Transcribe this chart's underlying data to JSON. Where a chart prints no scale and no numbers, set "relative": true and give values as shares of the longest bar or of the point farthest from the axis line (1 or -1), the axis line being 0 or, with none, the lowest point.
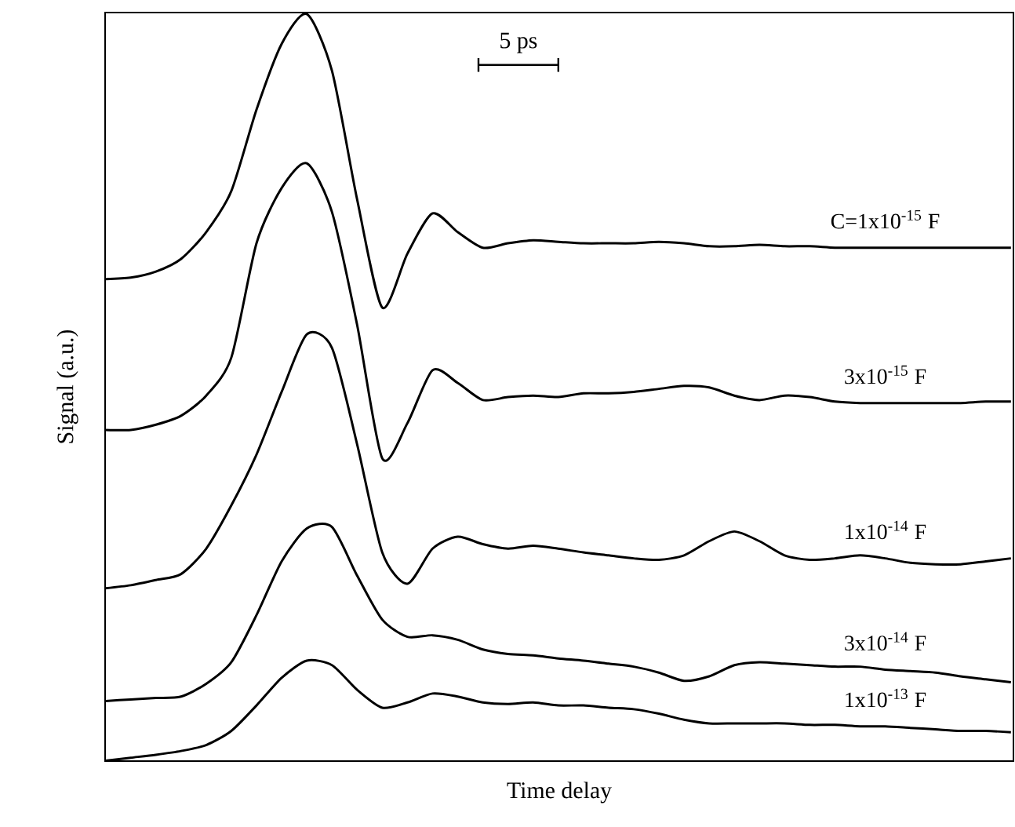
{
  "chart_data": {
    "type": "line",
    "relative": true,
    "xlabel": "Time delay",
    "ylabel": "Signal (a.u.)",
    "annotations": [
      "5 ps"
    ],
    "line_style": "solid",
    "categories": [
      null,
      null,
      null,
      null,
      null,
      null,
      null,
      null,
      null,
      null,
      null,
      null,
      null,
      null,
      null,
      null,
      null,
      null,
      null,
      null,
      null,
      null,
      null,
      null,
      null,
      null,
      null,
      null,
      null,
      null,
      null,
      null,
      null,
      null,
      null,
      null,
      null
    ],
    "series": [
      {
        "name": "C=1x10$^{-15}$ F",
        "color": "#000000",
        "values": [
          0.645,
          0.647,
          0.655,
          0.672,
          0.708,
          0.763,
          0.872,
          0.96,
          1.0,
          0.924,
          0.752,
          0.607,
          0.679,
          0.733,
          0.708,
          0.687,
          0.693,
          0.697,
          0.695,
          0.693,
          0.693,
          0.693,
          0.695,
          0.693,
          0.689,
          0.689,
          0.691,
          0.689,
          0.689,
          0.687,
          0.687,
          0.687,
          0.687,
          0.687,
          0.687,
          0.687,
          0.687
        ]
      },
      {
        "name": "3x10$^{-15}$ F",
        "color": "#000000",
        "values": [
          0.443,
          0.443,
          0.45,
          0.462,
          0.489,
          0.54,
          0.693,
          0.767,
          0.8,
          0.735,
          0.584,
          0.405,
          0.452,
          0.523,
          0.506,
          0.483,
          0.487,
          0.489,
          0.487,
          0.492,
          0.492,
          0.494,
          0.498,
          0.502,
          0.5,
          0.489,
          0.483,
          0.489,
          0.487,
          0.481,
          0.479,
          0.479,
          0.479,
          0.479,
          0.479,
          0.481,
          0.481
        ]
      },
      {
        "name": "1x10$^{-14}$ F",
        "color": "#000000",
        "values": [
          0.231,
          0.235,
          0.242,
          0.25,
          0.284,
          0.342,
          0.41,
          0.494,
          0.571,
          0.553,
          0.424,
          0.279,
          0.237,
          0.284,
          0.3,
          0.29,
          0.284,
          0.288,
          0.284,
          0.279,
          0.275,
          0.271,
          0.269,
          0.275,
          0.294,
          0.307,
          0.294,
          0.275,
          0.269,
          0.271,
          0.275,
          0.271,
          0.265,
          0.263,
          0.263,
          0.267,
          0.271
        ]
      },
      {
        "name": "3x10$^{-14}$ F",
        "color": "#000000",
        "values": [
          0.08,
          0.082,
          0.084,
          0.086,
          0.103,
          0.132,
          0.195,
          0.267,
          0.311,
          0.313,
          0.248,
          0.189,
          0.166,
          0.168,
          0.162,
          0.149,
          0.143,
          0.141,
          0.137,
          0.134,
          0.13,
          0.126,
          0.118,
          0.107,
          0.113,
          0.128,
          0.132,
          0.13,
          0.128,
          0.126,
          0.126,
          0.122,
          0.12,
          0.118,
          0.113,
          0.109,
          0.105
        ]
      },
      {
        "name": "1x10$^{-13}$ F",
        "color": "#000000",
        "values": [
          0.0,
          0.004,
          0.008,
          0.013,
          0.021,
          0.04,
          0.074,
          0.111,
          0.134,
          0.128,
          0.095,
          0.071,
          0.078,
          0.09,
          0.086,
          0.078,
          0.076,
          0.078,
          0.074,
          0.074,
          0.071,
          0.069,
          0.063,
          0.055,
          0.05,
          0.05,
          0.05,
          0.05,
          0.048,
          0.048,
          0.046,
          0.046,
          0.044,
          0.042,
          0.04,
          0.04,
          0.038
        ]
      }
    ]
  }
}
